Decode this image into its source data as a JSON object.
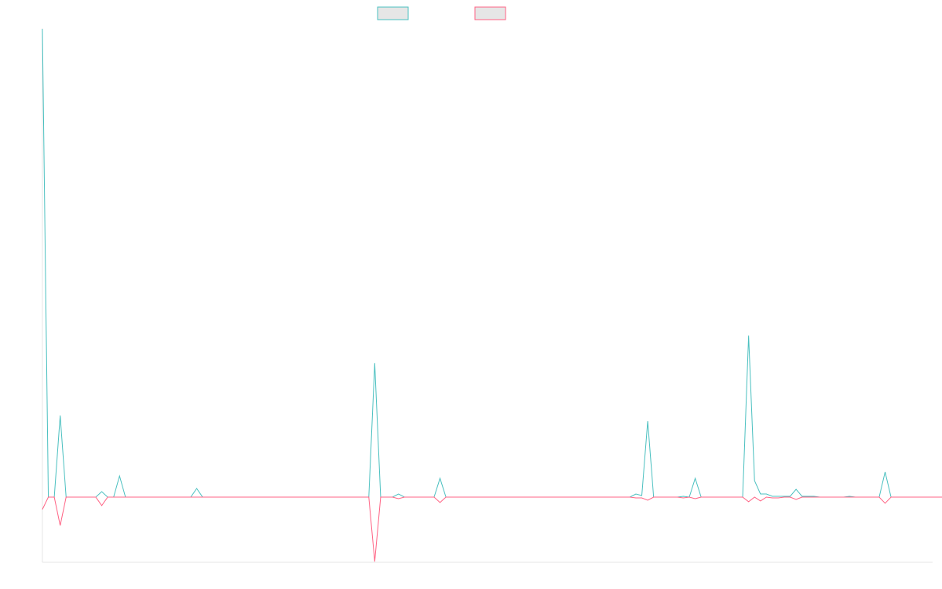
{
  "chart_data": {
    "type": "line",
    "title": "",
    "xlabel": "",
    "ylabel": "",
    "grid": false,
    "legend_position": "top-center",
    "ylim": [
      -85,
      598
    ],
    "x_count": 151,
    "series": [
      {
        "color": "#4bc0c0",
        "values": [
          597,
          0,
          0,
          104,
          0,
          0,
          0,
          0,
          0,
          0,
          7,
          0,
          0,
          27,
          0,
          0,
          0,
          0,
          0,
          0,
          0,
          0,
          0,
          0,
          0,
          0,
          11,
          0,
          0,
          0,
          0,
          0,
          0,
          0,
          0,
          0,
          0,
          0,
          0,
          0,
          0,
          0,
          0,
          0,
          0,
          0,
          0,
          0,
          0,
          0,
          0,
          0,
          0,
          0,
          0,
          0,
          171,
          0,
          0,
          0,
          4,
          0,
          0,
          0,
          0,
          0,
          0,
          24,
          0,
          0,
          0,
          0,
          0,
          0,
          0,
          0,
          0,
          0,
          0,
          0,
          0,
          0,
          0,
          0,
          0,
          0,
          0,
          0,
          0,
          0,
          0,
          0,
          0,
          0,
          0,
          0,
          0,
          0,
          0,
          0,
          4,
          2,
          97,
          0,
          0,
          0,
          0,
          0,
          1,
          0,
          24,
          0,
          0,
          0,
          0,
          0,
          0,
          0,
          0,
          206,
          21,
          4,
          4,
          1,
          1,
          1,
          1,
          10,
          1,
          1,
          1,
          0,
          0,
          0,
          0,
          0,
          1,
          0,
          0,
          0,
          0,
          0,
          32,
          0,
          0,
          0,
          0,
          0,
          0,
          0,
          0,
          0,
          0,
          0,
          1
        ]
      },
      {
        "color": "#ff6384",
        "values": [
          -16,
          0,
          0,
          -37,
          0,
          0,
          0,
          0,
          0,
          0,
          -11,
          0,
          0,
          0,
          0,
          0,
          0,
          0,
          0,
          0,
          0,
          0,
          0,
          0,
          0,
          0,
          0,
          0,
          0,
          0,
          0,
          0,
          0,
          0,
          0,
          0,
          0,
          0,
          0,
          0,
          0,
          0,
          0,
          0,
          0,
          0,
          0,
          0,
          0,
          0,
          0,
          0,
          0,
          0,
          0,
          0,
          -84,
          0,
          0,
          0,
          -2,
          0,
          0,
          0,
          0,
          0,
          0,
          -7,
          0,
          0,
          0,
          0,
          0,
          0,
          0,
          0,
          0,
          0,
          0,
          0,
          0,
          0,
          0,
          0,
          0,
          0,
          0,
          0,
          0,
          0,
          0,
          0,
          0,
          0,
          0,
          0,
          0,
          0,
          0,
          0,
          -1,
          -1,
          -4,
          0,
          0,
          0,
          0,
          0,
          -1,
          0,
          -2,
          0,
          0,
          0,
          0,
          0,
          0,
          0,
          0,
          -6,
          0,
          -5,
          0,
          -1,
          -1,
          0,
          0,
          -3,
          0,
          0,
          0,
          0,
          0,
          0,
          0,
          0,
          0,
          0,
          0,
          0,
          0,
          0,
          -8,
          0,
          0,
          0,
          0,
          0,
          0,
          0,
          0,
          0,
          0,
          0,
          -1
        ]
      }
    ]
  }
}
